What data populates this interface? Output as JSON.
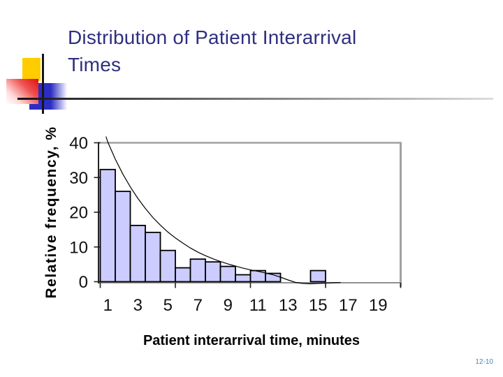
{
  "slide": {
    "title_line1": "Distribution of Patient Interarrival",
    "title_line2": "Times",
    "title_color": "#2f2f80",
    "page_number": "12-10",
    "page_number_color": "#4f81bd",
    "decor_colors": {
      "yellow": "#ffcc00",
      "red": "#e01010",
      "blue": "#2d2dc4"
    }
  },
  "chart_data": {
    "type": "bar",
    "title": "",
    "xlabel": "Patient interarrival time, minutes",
    "ylabel": "Relative frequency, %",
    "categories": [
      1,
      2,
      3,
      4,
      5,
      6,
      7,
      8,
      9,
      10,
      11,
      12,
      13,
      14,
      15,
      16,
      17,
      18,
      19,
      20
    ],
    "values": [
      32.3,
      26,
      16.2,
      14.2,
      9,
      4,
      6.5,
      5.7,
      4.4,
      2,
      3.2,
      2.4,
      0,
      0,
      3.2,
      0,
      0,
      0,
      0,
      0
    ],
    "x_tick_labels": [
      1,
      3,
      5,
      7,
      9,
      11,
      13,
      15,
      17,
      19
    ],
    "y_ticks": [
      0,
      10,
      20,
      30,
      40
    ],
    "ylim": [
      0,
      40
    ],
    "grid": false,
    "legend": "none",
    "colors": {
      "bar_fill": "#ccccff",
      "bar_border": "#000000",
      "plot_border": "#a0a0a0",
      "axis": "#222222",
      "curve": "#000000"
    },
    "curve": {
      "name": "fitted-exponential-curve",
      "points": [
        [
          0.88,
          41.8
        ],
        [
          1,
          40.2
        ],
        [
          1.5,
          35.3
        ],
        [
          2,
          31.0
        ],
        [
          2.5,
          27.3
        ],
        [
          3,
          24.0
        ],
        [
          3.5,
          21.1
        ],
        [
          4,
          18.5
        ],
        [
          4.5,
          16.3
        ],
        [
          5,
          14.3
        ],
        [
          5.5,
          12.6
        ],
        [
          6,
          11.1
        ],
        [
          6.5,
          9.7
        ],
        [
          7,
          8.5
        ],
        [
          7.5,
          7.5
        ],
        [
          8,
          6.6
        ],
        [
          8.5,
          5.8
        ],
        [
          9,
          5.1
        ],
        [
          9.5,
          4.5
        ],
        [
          10,
          3.9
        ],
        [
          10.5,
          3.4
        ],
        [
          11,
          3.0
        ],
        [
          11.5,
          2.5
        ],
        [
          12,
          2.0
        ],
        [
          12.5,
          1.3
        ],
        [
          13,
          0.5
        ],
        [
          13.5,
          -0.2
        ],
        [
          14,
          -0.5
        ],
        [
          14.5,
          -0.6
        ],
        [
          15,
          -0.5
        ],
        [
          15.5,
          -0.4
        ],
        [
          16,
          -0.3
        ],
        [
          16.5,
          -0.25
        ]
      ]
    }
  }
}
